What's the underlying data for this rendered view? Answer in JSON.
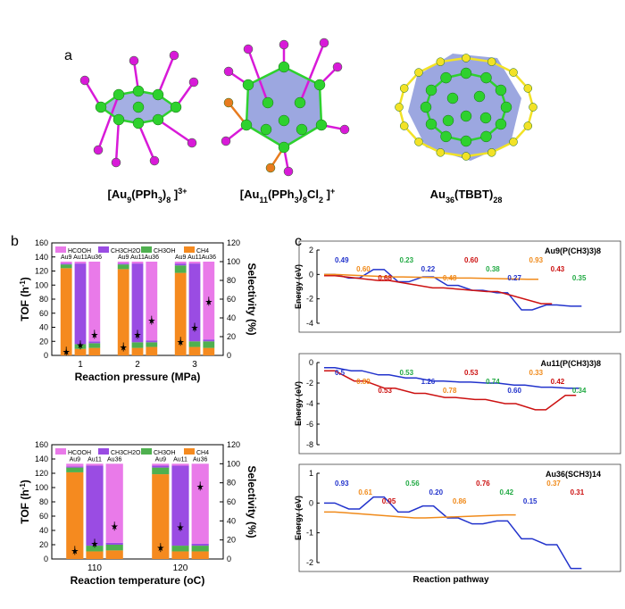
{
  "panel_labels": {
    "a": "a",
    "b": "b",
    "c": "c"
  },
  "clusters": [
    {
      "label": "[Au9(PPh3)8]3+"
    },
    {
      "label": "[Au11(PPh3)8Cl2]+"
    },
    {
      "label": "Au36(TBBT)28"
    }
  ],
  "colors": {
    "hcooh": "#e97ae9",
    "ch3ch2oh": "#9a4ce3",
    "ch3oh": "#4fb04f",
    "ch4": "#f58a1f",
    "au_atom": "#2ed12e",
    "p_atom": "#d81ad8",
    "s_atom": "#f2e226",
    "cl_atom": "#e87b1e",
    "polyhedron": "#4a5fc7"
  },
  "chart_data": [
    {
      "type": "bar",
      "title": "",
      "xlabel": "Reaction pressure (MPa)",
      "ylabel": "TOF (h-1)",
      "y2label": "Selectivity (%)",
      "ylim": [
        0,
        160
      ],
      "y2lim": [
        0,
        120
      ],
      "yticks": [
        0,
        20,
        40,
        60,
        80,
        100,
        120,
        140,
        160
      ],
      "y2ticks": [
        0,
        20,
        40,
        60,
        80,
        100,
        120
      ],
      "legend": [
        "HCOOH",
        "CH3CH2OH",
        "CH3OH",
        "CH4"
      ],
      "group_labels": [
        "1",
        "2",
        "3"
      ],
      "bar_labels": [
        "Au9",
        "Au11",
        "Au36"
      ],
      "selectivity_stacks": [
        [
          {
            "ch4": 93,
            "ch3oh": 4,
            "ch3ch2oh": 1,
            "hcooh": 2
          },
          {
            "ch4": 7,
            "ch3oh": 5,
            "ch3ch2oh": 86,
            "hcooh": 2
          },
          {
            "ch4": 8,
            "ch3oh": 5,
            "ch3ch2oh": 2,
            "hcooh": 85
          }
        ],
        [
          {
            "ch4": 92,
            "ch3oh": 5,
            "ch3ch2oh": 1,
            "hcooh": 2
          },
          {
            "ch4": 8,
            "ch3oh": 6,
            "ch3ch2oh": 84,
            "hcooh": 2
          },
          {
            "ch4": 9,
            "ch3oh": 5,
            "ch3ch2oh": 2,
            "hcooh": 84
          }
        ],
        [
          {
            "ch4": 88,
            "ch3oh": 8,
            "ch3ch2oh": 2,
            "hcooh": 2
          },
          {
            "ch4": 9,
            "ch3oh": 6,
            "ch3ch2oh": 83,
            "hcooh": 2
          },
          {
            "ch4": 8,
            "ch3oh": 7,
            "ch3ch2oh": 2,
            "hcooh": 83
          }
        ]
      ],
      "tof": [
        [
          6,
          15,
          30
        ],
        [
          12,
          30,
          50
        ],
        [
          20,
          40,
          77
        ]
      ]
    },
    {
      "type": "bar",
      "title": "",
      "xlabel": "Reaction temperature (oC)",
      "ylabel": "TOF (h-1)",
      "y2label": "Selectivity (%)",
      "ylim": [
        0,
        160
      ],
      "y2lim": [
        0,
        120
      ],
      "yticks": [
        0,
        20,
        40,
        60,
        80,
        100,
        120,
        140,
        160
      ],
      "y2ticks": [
        0,
        20,
        40,
        60,
        80,
        100,
        120
      ],
      "legend": [
        "HCOOH",
        "CH3CH2OH",
        "CH3OH",
        "CH4"
      ],
      "group_labels": [
        "110",
        "120"
      ],
      "bar_labels": [
        "Au9",
        "Au11",
        "Au36"
      ],
      "selectivity_stacks": [
        [
          {
            "ch4": 91,
            "ch3oh": 5,
            "ch3ch2oh": 1,
            "hcooh": 3
          },
          {
            "ch4": 8,
            "ch3oh": 6,
            "ch3ch2oh": 84,
            "hcooh": 2
          },
          {
            "ch4": 9,
            "ch3oh": 6,
            "ch3ch2oh": 2,
            "hcooh": 83
          }
        ],
        [
          {
            "ch4": 89,
            "ch3oh": 7,
            "ch3ch2oh": 2,
            "hcooh": 2
          },
          {
            "ch4": 8,
            "ch3oh": 6,
            "ch3ch2oh": 84,
            "hcooh": 2
          },
          {
            "ch4": 8,
            "ch3oh": 6,
            "ch3ch2oh": 2,
            "hcooh": 84
          }
        ]
      ],
      "tof": [
        [
          12,
          22,
          46
        ],
        [
          16,
          45,
          102
        ]
      ]
    },
    {
      "type": "line",
      "title": "Au9(P(CH3)3)8",
      "ylabel": "Energy (eV)",
      "ylim": [
        -4,
        2
      ],
      "yticks": [
        2,
        0,
        -2,
        -4
      ],
      "barriers": [
        "0.49",
        "0.60",
        "0.68",
        "0.23",
        "0.22",
        "0.48",
        "0.60",
        "0.38",
        "0.27",
        "0.93",
        "0.43",
        "0.35"
      ]
    },
    {
      "type": "line",
      "title": "Au11(P(CH3)3)8",
      "ylabel": "Energy (eV)",
      "ylim": [
        -8,
        0
      ],
      "yticks": [
        0,
        -2,
        -4,
        -6,
        -8
      ],
      "barriers": [
        "0.5",
        "0.89",
        "0.53",
        "0.53",
        "1.26",
        "0.78",
        "0.53",
        "0.74",
        "0.60",
        "0.33",
        "0.42",
        "0.34"
      ]
    },
    {
      "type": "line",
      "title": "Au36(SCH3)14",
      "ylabel": "Energy (eV)",
      "ylim": [
        -2,
        1
      ],
      "yticks": [
        1,
        0,
        -1,
        -2
      ],
      "barriers": [
        "0.93",
        "0.61",
        "0.95",
        "0.56",
        "0.20",
        "0.86",
        "0.76",
        "0.42",
        "0.15",
        "0.37",
        "0.31"
      ]
    }
  ],
  "xlabel_c": "Reaction pathway"
}
